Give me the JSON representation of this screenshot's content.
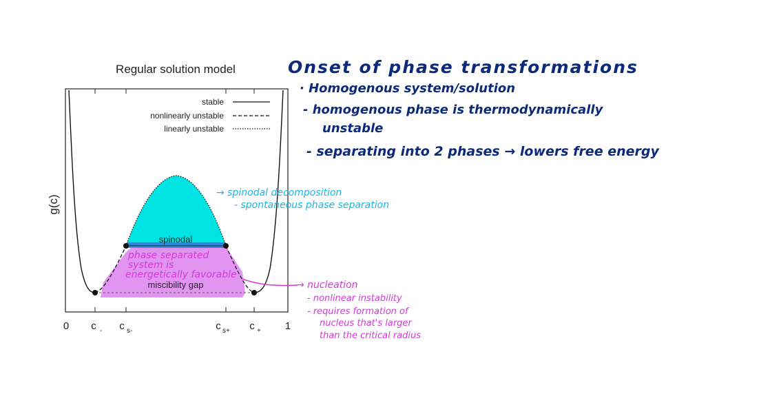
{
  "figure": {
    "title": "Regular solution model",
    "ylabel": "g(c)",
    "legend": {
      "stable": "stable",
      "nonlinear": "nonlinearly unstable",
      "linear": "linearly unstable"
    },
    "ticks": {
      "zero": "0",
      "c_minus": "c",
      "c_minus_sub": "-",
      "cs_minus": "c",
      "cs_minus_sub": "s-",
      "cs_plus": "c",
      "cs_plus_sub": "s+",
      "c_plus": "c",
      "c_plus_sub": "+",
      "one": "1"
    },
    "regions": {
      "spinodal": "spinodal",
      "miscibility": "miscibility gap"
    },
    "colors": {
      "spinodal_fill": "#00e3e3",
      "spinodal_band": "#2a7ad8",
      "miscibility_fill": "#e08ef0",
      "curve": "#111111"
    }
  },
  "notes": {
    "heading": "Onset of phase transformations",
    "bullets": [
      "· Homogenous system/solution",
      "- homogenous phase is thermodynamically",
      "unstable",
      "- separating into 2 phases → lowers free energy"
    ],
    "spinodal_notes": [
      "→ spinodal decomposition",
      "- spontaneous phase separation"
    ],
    "phase_separated_notes": [
      "phase separated",
      "system is",
      "energetically favorable"
    ],
    "nucleation_notes": [
      "→ nucleation",
      "- nonlinear instability",
      "- requires formation of",
      "nucleus that's larger",
      "than the critical radius"
    ]
  }
}
